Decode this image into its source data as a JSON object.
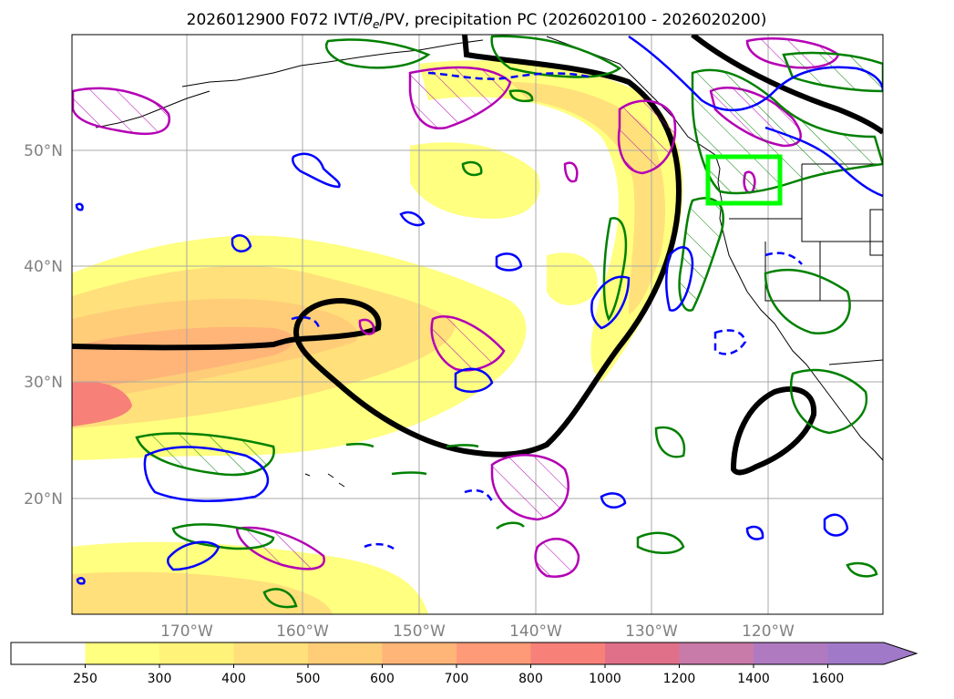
{
  "title": {
    "main": "2026012900 F072 IVT/",
    "theta": "θ",
    "theta_sub": "e",
    "rest": "/PV, precipitation PC (2026020100 - 2026020200)"
  },
  "map": {
    "lon_labels": [
      "170°W",
      "160°W",
      "150°W",
      "140°W",
      "130°W",
      "120°W"
    ],
    "lat_labels": [
      "50°N",
      "40°N",
      "30°N",
      "20°N"
    ]
  },
  "colorbar": {
    "ticks": [
      "250",
      "300",
      "400",
      "500",
      "600",
      "700",
      "800",
      "1000",
      "1200",
      "1400",
      "1600"
    ],
    "colors": [
      "#ffffff",
      "#ffff80",
      "#fff37a",
      "#ffe07a",
      "#ffcd78",
      "#ffb478",
      "#ff9a78",
      "#f78078",
      "#e0708a",
      "#c87aa8",
      "#b07ac0",
      "#a07ac8"
    ]
  },
  "legend_colors": {
    "ivt_contour": "#000000",
    "theta_e_solid": "#0000ff",
    "pv_green": "#008000",
    "precip_magenta": "#b400b4",
    "highlight_box": "#00ff00"
  }
}
